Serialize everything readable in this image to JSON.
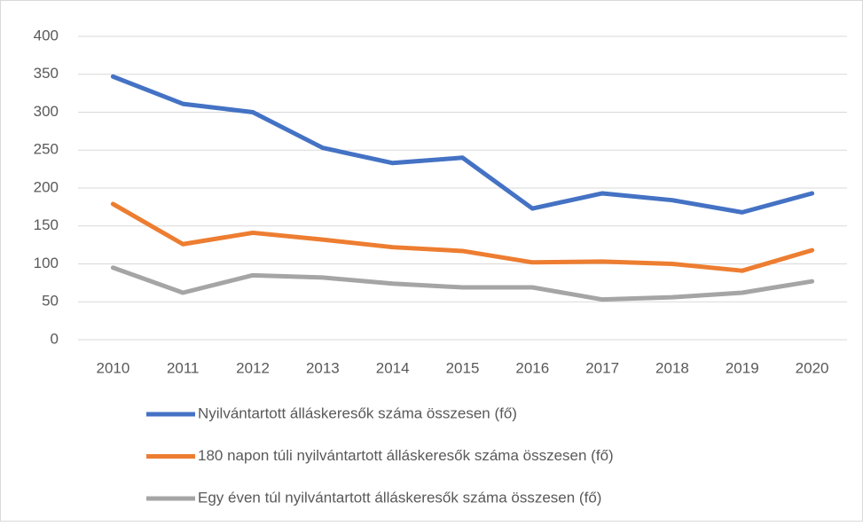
{
  "chart_data": {
    "type": "line",
    "categories": [
      "2010",
      "2011",
      "2012",
      "2013",
      "2014",
      "2015",
      "2016",
      "2017",
      "2018",
      "2019",
      "2020"
    ],
    "series": [
      {
        "name": "Nyilvántartott álláskeresők száma összesen (fő)",
        "color": "#4472c4",
        "values": [
          347,
          311,
          300,
          253,
          233,
          240,
          173,
          193,
          184,
          168,
          193
        ]
      },
      {
        "name": "180 napon túli nyilvántartott álláskeresők száma összesen (fő)",
        "color": "#ed7d31",
        "values": [
          179,
          126,
          141,
          132,
          122,
          117,
          102,
          103,
          100,
          91,
          118
        ]
      },
      {
        "name": "Egy éven túl nyilvántartott álláskeresők száma összesen (fő)",
        "color": "#a5a5a5",
        "values": [
          95,
          62,
          85,
          82,
          74,
          69,
          69,
          53,
          56,
          62,
          77
        ]
      }
    ],
    "ylim": [
      0,
      400
    ],
    "yticks": [
      0,
      50,
      100,
      150,
      200,
      250,
      300,
      350,
      400
    ],
    "grid": true,
    "legend": "bottom"
  }
}
